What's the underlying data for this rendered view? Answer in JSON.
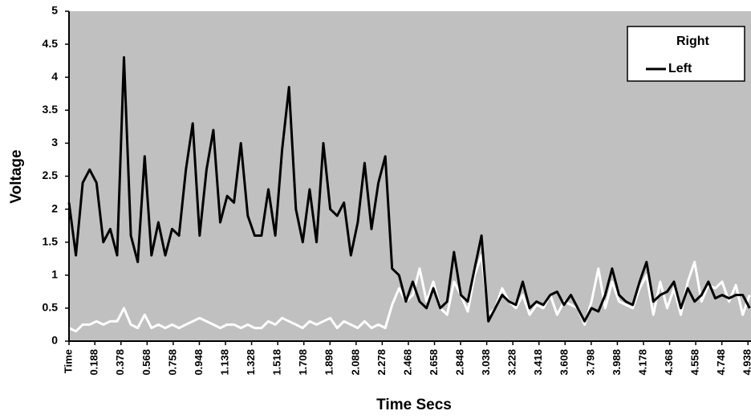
{
  "chart_data": {
    "type": "line",
    "xlabel": "Time Secs",
    "ylabel": "Voltage",
    "x": [
      0,
      0.05,
      0.1,
      0.15,
      0.2,
      0.25,
      0.3,
      0.35,
      0.4,
      0.45,
      0.5,
      0.55,
      0.6,
      0.65,
      0.7,
      0.75,
      0.8,
      0.85,
      0.9,
      0.95,
      1,
      1.05,
      1.1,
      1.15,
      1.2,
      1.25,
      1.3,
      1.35,
      1.4,
      1.45,
      1.5,
      1.55,
      1.6,
      1.65,
      1.7,
      1.75,
      1.8,
      1.85,
      1.9,
      1.95,
      2,
      2.05,
      2.1,
      2.15,
      2.2,
      2.25,
      2.3,
      2.35,
      2.4,
      2.45,
      2.5,
      2.55,
      2.6,
      2.65,
      2.7,
      2.75,
      2.8,
      2.85,
      2.9,
      2.95,
      3,
      3.05,
      3.1,
      3.15,
      3.2,
      3.25,
      3.3,
      3.35,
      3.4,
      3.45,
      3.5,
      3.55,
      3.6,
      3.65,
      3.7,
      3.75,
      3.8,
      3.85,
      3.9,
      3.95,
      4,
      4.05,
      4.1,
      4.15,
      4.2,
      4.25,
      4.3,
      4.35,
      4.4,
      4.45,
      4.5,
      4.55,
      4.6,
      4.65,
      4.7,
      4.75,
      4.8,
      4.85,
      4.9,
      4.95
    ],
    "series": [
      {
        "name": "Right",
        "color": "#ffffff",
        "values": [
          0.2,
          0.15,
          0.25,
          0.25,
          0.3,
          0.25,
          0.3,
          0.3,
          0.5,
          0.25,
          0.2,
          0.4,
          0.2,
          0.25,
          0.2,
          0.25,
          0.2,
          0.25,
          0.3,
          0.35,
          0.3,
          0.25,
          0.2,
          0.25,
          0.25,
          0.2,
          0.25,
          0.2,
          0.2,
          0.3,
          0.25,
          0.35,
          0.3,
          0.25,
          0.2,
          0.3,
          0.25,
          0.3,
          0.35,
          0.2,
          0.3,
          0.25,
          0.2,
          0.3,
          0.2,
          0.25,
          0.2,
          0.55,
          0.8,
          0.6,
          0.7,
          1.1,
          0.6,
          0.9,
          0.5,
          0.4,
          0.9,
          0.7,
          0.45,
          1.0,
          1.3,
          0.4,
          0.5,
          0.8,
          0.6,
          0.5,
          0.7,
          0.4,
          0.55,
          0.5,
          0.7,
          0.4,
          0.6,
          0.55,
          0.5,
          0.25,
          0.6,
          1.1,
          0.5,
          0.9,
          0.6,
          0.55,
          0.5,
          0.8,
          1.0,
          0.4,
          0.9,
          0.5,
          0.8,
          0.4,
          0.9,
          1.2,
          0.6,
          0.85,
          0.8,
          0.9,
          0.6,
          0.85,
          0.4,
          0.7
        ]
      },
      {
        "name": "Left",
        "color": "#000000",
        "values": [
          2.1,
          1.3,
          2.4,
          2.6,
          2.4,
          1.5,
          1.7,
          1.3,
          4.3,
          1.6,
          1.2,
          2.8,
          1.3,
          1.8,
          1.3,
          1.7,
          1.6,
          2.6,
          3.3,
          1.6,
          2.6,
          3.2,
          1.8,
          2.2,
          2.1,
          3.0,
          1.9,
          1.6,
          1.6,
          2.3,
          1.6,
          2.9,
          3.85,
          2.0,
          1.5,
          2.3,
          1.5,
          3.0,
          2.0,
          1.9,
          2.1,
          1.3,
          1.8,
          2.7,
          1.7,
          2.4,
          2.8,
          1.1,
          1.0,
          0.6,
          0.9,
          0.6,
          0.5,
          0.8,
          0.5,
          0.6,
          1.35,
          0.7,
          0.6,
          1.1,
          1.6,
          0.3,
          0.5,
          0.7,
          0.6,
          0.55,
          0.9,
          0.5,
          0.6,
          0.55,
          0.7,
          0.75,
          0.55,
          0.7,
          0.5,
          0.3,
          0.5,
          0.45,
          0.7,
          1.1,
          0.7,
          0.6,
          0.55,
          0.9,
          1.2,
          0.6,
          0.7,
          0.75,
          0.9,
          0.5,
          0.8,
          0.6,
          0.7,
          0.9,
          0.65,
          0.7,
          0.65,
          0.7,
          0.7,
          0.5
        ]
      }
    ],
    "xlim": [
      0,
      4.96
    ],
    "xticks": [
      {
        "value": 0,
        "label": "Time"
      },
      0.188,
      0.378,
      0.568,
      0.758,
      0.948,
      1.138,
      1.328,
      1.518,
      1.708,
      1.898,
      2.088,
      2.278,
      2.468,
      2.658,
      2.848,
      3.038,
      3.228,
      3.418,
      3.608,
      3.798,
      3.988,
      4.178,
      4.368,
      4.558,
      4.748,
      4.938
    ],
    "ylim": [
      0,
      5
    ],
    "yticks": [
      0,
      0.5,
      1,
      1.5,
      2,
      2.5,
      3,
      3.5,
      4,
      4.5,
      5
    ],
    "grid": false,
    "legend": "upper right",
    "background": "#c0c0c0"
  }
}
